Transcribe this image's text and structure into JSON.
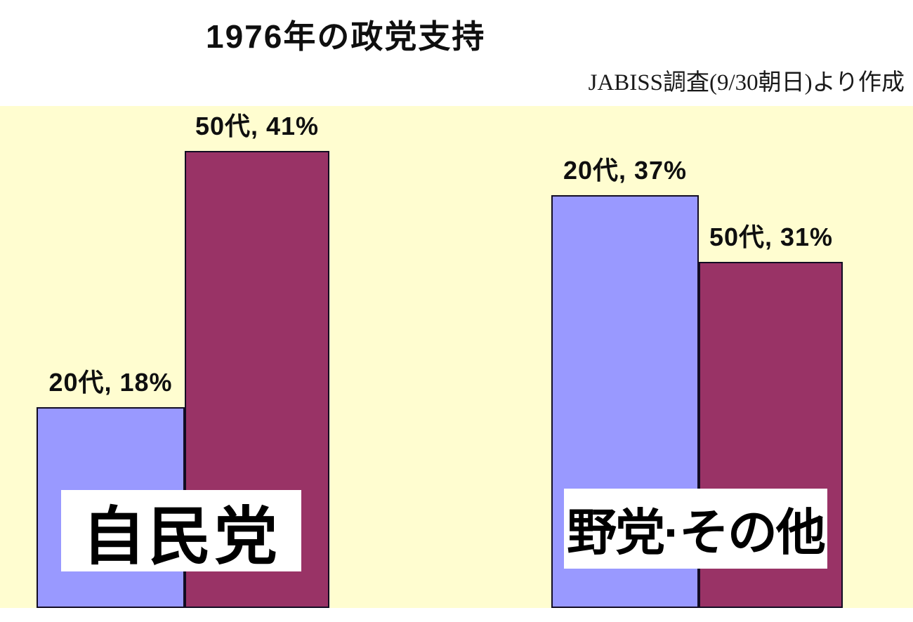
{
  "chart_data": {
    "type": "bar",
    "title": "1976年の政党支持",
    "source_note": "JABISS調査(9/30朝日)より作成",
    "categories": [
      "自民党",
      "野党·その他"
    ],
    "series": [
      {
        "name": "20代",
        "color": "#9999ff",
        "values": [
          18,
          37
        ]
      },
      {
        "name": "50代",
        "color": "#993366",
        "values": [
          41,
          31
        ]
      }
    ],
    "bar_labels": {
      "ldp_20s": "20代, 18%",
      "ldp_50s": "50代, 41%",
      "opp_20s": "20代, 37%",
      "opp_50s": "50代, 31%"
    },
    "value_unit": "%",
    "ylim": [
      0,
      45
    ],
    "grid": false,
    "legend_position": "none",
    "plot_background": "#fffdd0",
    "bar_border_color": "#120c22",
    "category_label_background": "#ffffff"
  }
}
